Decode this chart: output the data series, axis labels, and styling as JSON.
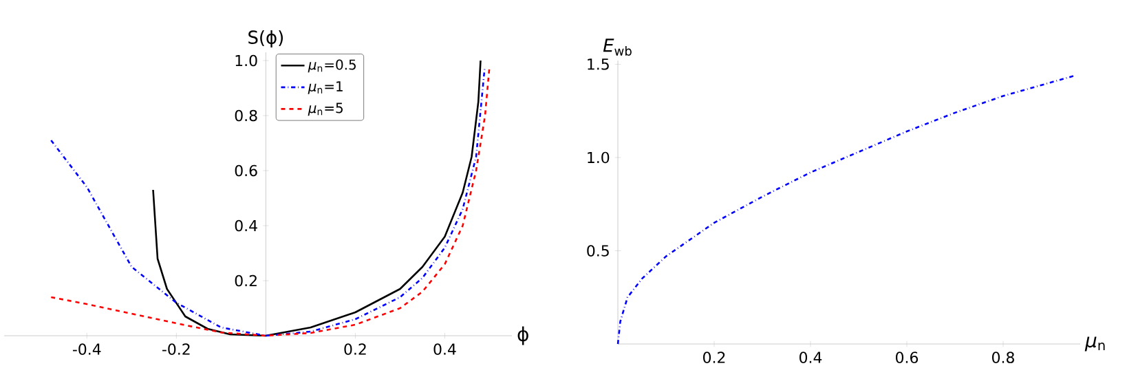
{
  "chart_data": [
    {
      "type": "line",
      "xlabel": "ϕ",
      "ylabel": "S(ϕ)",
      "xlim": [
        -0.585,
        0.55
      ],
      "ylim": [
        0,
        1.03
      ],
      "xticks": [
        -0.4,
        -0.2,
        0.2,
        0.4
      ],
      "yticks": [
        0.2,
        0.4,
        0.6,
        0.8,
        {
          "value": 1,
          "label": "1.0"
        }
      ],
      "legend": "top",
      "series": [
        {
          "name": "*μ*$_{n}$=0.5",
          "color": "#000000",
          "line_style": "solid",
          "x": [
            -0.252,
            -0.242,
            -0.221,
            -0.18,
            -0.13,
            -0.08,
            0,
            0.1,
            0.2,
            0.3,
            0.35,
            0.4,
            0.44,
            0.46,
            0.475,
            0.48
          ],
          "values": [
            0.53,
            0.28,
            0.17,
            0.07,
            0.025,
            0.005,
            0,
            0.03,
            0.085,
            0.17,
            0.25,
            0.36,
            0.52,
            0.65,
            0.85,
            1.0
          ]
        },
        {
          "name": "*μ*$_{n}$=1",
          "color": "#0000ff",
          "line_style": "dashdot",
          "x": [
            -0.48,
            -0.4,
            -0.3,
            -0.2,
            -0.1,
            0,
            0.1,
            0.2,
            0.3,
            0.35,
            0.4,
            0.44,
            0.47,
            0.489
          ],
          "values": [
            0.71,
            0.54,
            0.25,
            0.12,
            0.03,
            0,
            0.015,
            0.06,
            0.14,
            0.21,
            0.32,
            0.46,
            0.65,
            0.97
          ]
        },
        {
          "name": "*μ*$_{n}$=5",
          "color": "#ff0000",
          "line_style": "dashed",
          "x": [
            -0.48,
            -0.4,
            -0.3,
            -0.2,
            -0.1,
            0,
            0.1,
            0.2,
            0.3,
            0.35,
            0.4,
            0.44,
            0.47,
            0.49,
            0.5
          ],
          "values": [
            0.14,
            0.115,
            0.08,
            0.045,
            0.012,
            0,
            0.01,
            0.04,
            0.1,
            0.16,
            0.26,
            0.4,
            0.6,
            0.8,
            0.98
          ]
        }
      ]
    },
    {
      "type": "line",
      "xlabel": "*μ*$_{n}$",
      "ylabel": "*E*$_{wb}$",
      "xlim": [
        0,
        0.96
      ],
      "ylim": [
        0,
        1.52
      ],
      "xticks": [
        0.2,
        0.4,
        0.6,
        0.8
      ],
      "yticks": [
        0.5,
        {
          "value": 1,
          "label": "1.0"
        },
        1.5
      ],
      "series": [
        {
          "color": "#0000ff",
          "line_style": "dashdot",
          "x": [
            0,
            0.005,
            0.02,
            0.05,
            0.1,
            0.2,
            0.3,
            0.4,
            0.5,
            0.6,
            0.7,
            0.8,
            0.95
          ],
          "values": [
            0,
            0.12,
            0.25,
            0.35,
            0.47,
            0.65,
            0.79,
            0.92,
            1.03,
            1.14,
            1.24,
            1.33,
            1.44
          ]
        }
      ]
    }
  ]
}
